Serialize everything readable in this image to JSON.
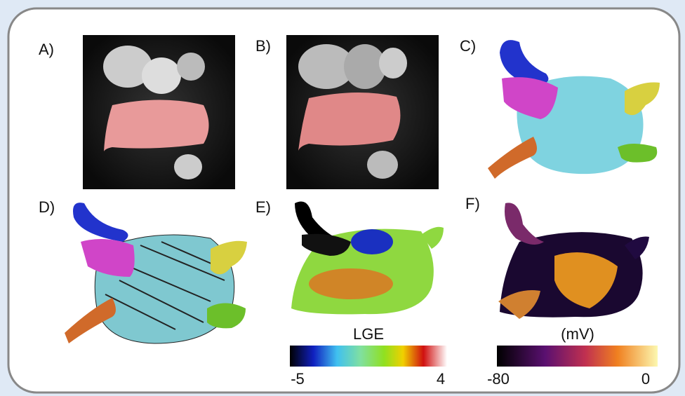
{
  "panels": [
    {
      "label": "A)"
    },
    {
      "label": "B)"
    },
    {
      "label": "C)"
    },
    {
      "label": "D)"
    },
    {
      "label": "E)"
    },
    {
      "label": "F)"
    }
  ],
  "colorbars": [
    {
      "title": "LGE",
      "min": "-5",
      "max": "4"
    },
    {
      "title": "(mV)",
      "min": "-80",
      "max": "0"
    }
  ]
}
